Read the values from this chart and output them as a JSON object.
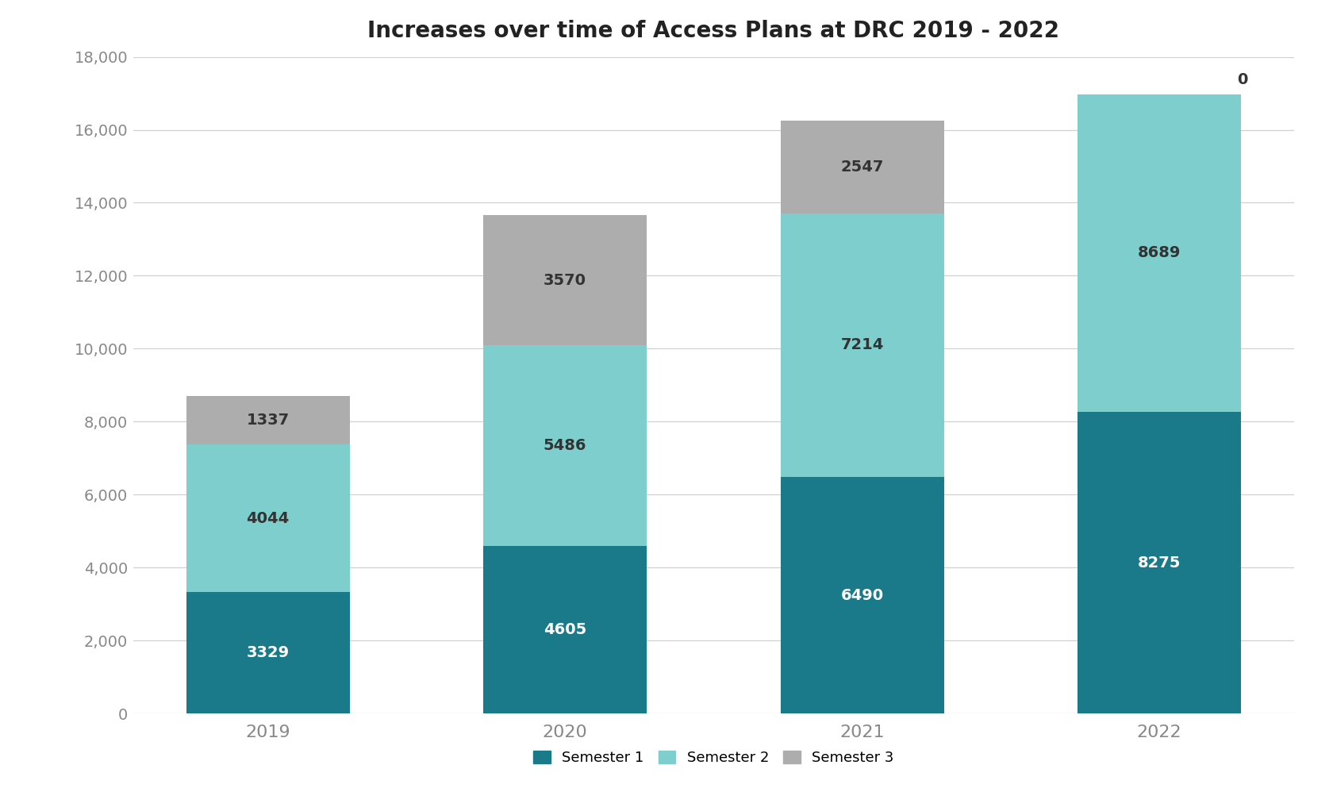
{
  "title": "Increases over time of Access Plans at DRC 2019 - 2022",
  "years": [
    "2019",
    "2020",
    "2021",
    "2022"
  ],
  "semester1": [
    3329,
    4605,
    6490,
    8275
  ],
  "semester2": [
    4044,
    5486,
    7214,
    8689
  ],
  "semester3": [
    1337,
    3570,
    2547,
    0
  ],
  "color_sem1": "#1a7a8a",
  "color_sem2": "#7ecece",
  "color_sem3": "#adadad",
  "ylim": [
    0,
    18000
  ],
  "yticks": [
    0,
    2000,
    4000,
    6000,
    8000,
    10000,
    12000,
    14000,
    16000,
    18000
  ],
  "ytick_labels": [
    "0",
    "2,000",
    "4,000",
    "6,000",
    "8,000",
    "10,000",
    "12,000",
    "14,000",
    "16,000",
    "18,000"
  ],
  "legend_labels": [
    "Semester 1",
    "Semester 2",
    "Semester 3"
  ],
  "background_color": "#ffffff",
  "grid_color": "#d0d0d0",
  "title_fontsize": 20,
  "label_fontsize": 14,
  "legend_fontsize": 13,
  "bar_width": 0.55,
  "annotation_fontsize": 14
}
